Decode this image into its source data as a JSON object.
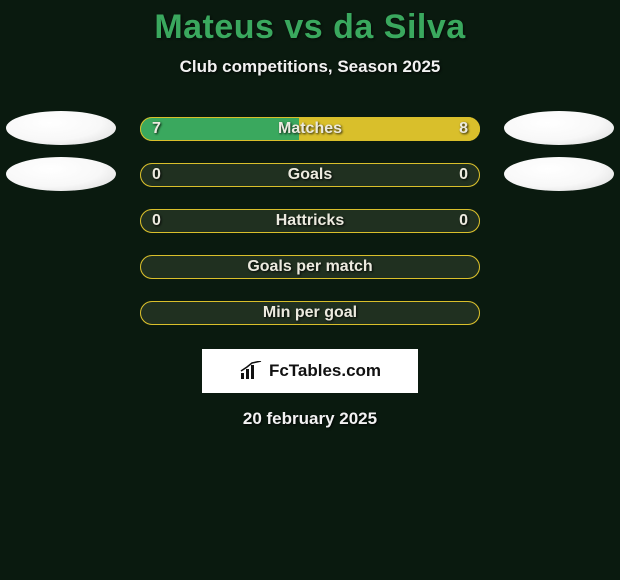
{
  "background_color": "#0a1a0f",
  "title": {
    "text": "Mateus vs da Silva",
    "color": "#3aa85e",
    "fontsize": 34
  },
  "subtitle": {
    "text": "Club competitions, Season 2025",
    "color": "#f2f2f2",
    "fontsize": 17
  },
  "bar_style": {
    "border_color": "#d9bf2b",
    "border_radius": 12,
    "bg_color": "#203020",
    "label_color": "#eceadf",
    "label_fontsize": 16,
    "area_width": 340,
    "left_color": "#3aa85e",
    "right_color": "#d9bf2b"
  },
  "ellipse_colors": {
    "row0_left": "#f8f8f8",
    "row0_right": "#f8f8f8",
    "row1_left": "#f8f8f8",
    "row1_right": "#f8f8f8"
  },
  "rows": [
    {
      "label": "Matches",
      "left": "7",
      "right": "8",
      "left_val": 7,
      "right_val": 8,
      "show_ellipses": true
    },
    {
      "label": "Goals",
      "left": "0",
      "right": "0",
      "left_val": 0,
      "right_val": 0,
      "show_ellipses": true
    },
    {
      "label": "Hattricks",
      "left": "0",
      "right": "0",
      "left_val": 0,
      "right_val": 0,
      "show_ellipses": false
    },
    {
      "label": "Goals per match",
      "left": "",
      "right": "",
      "left_val": 0,
      "right_val": 0,
      "show_ellipses": false
    },
    {
      "label": "Min per goal",
      "left": "",
      "right": "",
      "left_val": 0,
      "right_val": 0,
      "show_ellipses": false
    }
  ],
  "brand": {
    "text": "FcTables.com",
    "bg": "#ffffff",
    "text_color": "#111111"
  },
  "date": {
    "text": "20 february 2025",
    "color": "#f2f2f2",
    "fontsize": 17
  }
}
